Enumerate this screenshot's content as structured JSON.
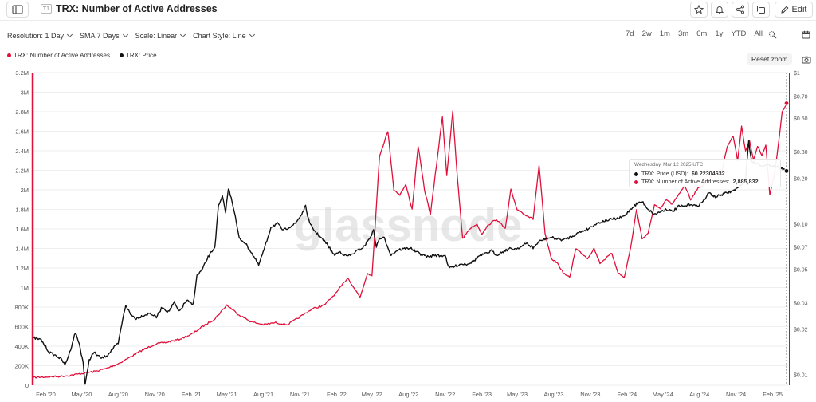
{
  "header": {
    "badge": "T1",
    "title": "TRX: Number of Active Addresses",
    "edit_label": "Edit"
  },
  "controls": {
    "resolution": "Resolution: 1 Day",
    "sma": "SMA 7 Days",
    "scale": "Scale: Linear",
    "style": "Chart Style: Line"
  },
  "ranges": [
    "7d",
    "2w",
    "1m",
    "3m",
    "6m",
    "1y",
    "YTD",
    "All"
  ],
  "legend": {
    "addresses": "TRX: Number of Active Addresses",
    "price": "TRX: Price"
  },
  "reset_zoom": "Reset zoom",
  "watermark": "glassnode",
  "tooltip": {
    "date": "Wednesday, Mar 12 2025 UTC",
    "price_label": "TRX: Price (USD):",
    "price_value": "$0.22304632",
    "addr_label": "TRX: Number of Active Addresses:",
    "addr_value": "2,885,832"
  },
  "colors": {
    "addresses": "#e0103a",
    "price": "#111111",
    "grid": "#eeeeee"
  },
  "chart_data": {
    "type": "line",
    "x_ticks": [
      "Feb '20",
      "May '20",
      "Aug '20",
      "Nov '20",
      "Feb '21",
      "May '21",
      "Aug '21",
      "Nov '21",
      "Feb '22",
      "May '22",
      "Aug '22",
      "Nov '22",
      "Feb '23",
      "May '23",
      "Aug '23",
      "Nov '23",
      "Feb '24",
      "May '24",
      "Aug '24",
      "Nov '24",
      "Feb '25"
    ],
    "y_left": {
      "ticks": [
        "0",
        "200K",
        "400K",
        "600K",
        "800K",
        "1M",
        "1.2M",
        "1.4M",
        "1.6M",
        "1.8M",
        "2M",
        "2.2M",
        "2.4M",
        "2.6M",
        "2.8M",
        "3M",
        "3.2M"
      ],
      "range": [
        0,
        3200000
      ]
    },
    "y_right": {
      "scale": "log",
      "ticks": [
        "$0.01",
        "$0.02",
        "$0.03",
        "$0.05",
        "$0.07",
        "$0.10",
        "$0.20",
        "$0.30",
        "$0.50",
        "$0.70",
        "$1"
      ],
      "values": [
        0.01,
        0.02,
        0.03,
        0.05,
        0.07,
        0.1,
        0.2,
        0.3,
        0.5,
        0.7,
        1.0
      ],
      "range": [
        0.0085,
        1.0
      ]
    },
    "series": [
      {
        "name": "TRX: Number of Active Addresses",
        "axis": "left",
        "points": [
          [
            "2020-01-01",
            80000
          ],
          [
            "2020-02-01",
            85000
          ],
          [
            "2020-03-01",
            90000
          ],
          [
            "2020-04-01",
            100000
          ],
          [
            "2020-05-01",
            120000
          ],
          [
            "2020-06-01",
            140000
          ],
          [
            "2020-07-01",
            170000
          ],
          [
            "2020-08-01",
            220000
          ],
          [
            "2020-09-01",
            290000
          ],
          [
            "2020-10-01",
            360000
          ],
          [
            "2020-11-01",
            420000
          ],
          [
            "2020-12-01",
            440000
          ],
          [
            "2021-01-01",
            470000
          ],
          [
            "2021-02-01",
            520000
          ],
          [
            "2021-03-01",
            600000
          ],
          [
            "2021-04-01",
            680000
          ],
          [
            "2021-05-01",
            820000
          ],
          [
            "2021-06-01",
            720000
          ],
          [
            "2021-07-01",
            650000
          ],
          [
            "2021-08-01",
            620000
          ],
          [
            "2021-09-01",
            640000
          ],
          [
            "2021-10-01",
            620000
          ],
          [
            "2021-11-01",
            700000
          ],
          [
            "2021-12-01",
            780000
          ],
          [
            "2022-01-01",
            820000
          ],
          [
            "2022-02-01",
            950000
          ],
          [
            "2022-03-01",
            1100000
          ],
          [
            "2022-04-01",
            900000
          ],
          [
            "2022-04-20",
            1150000
          ],
          [
            "2022-05-01",
            1120000
          ],
          [
            "2022-05-20",
            2350000
          ],
          [
            "2022-06-10",
            2600000
          ],
          [
            "2022-06-25",
            2000000
          ],
          [
            "2022-07-10",
            1950000
          ],
          [
            "2022-07-25",
            2050000
          ],
          [
            "2022-08-10",
            1800000
          ],
          [
            "2022-08-25",
            2450000
          ],
          [
            "2022-09-10",
            2000000
          ],
          [
            "2022-09-25",
            1750000
          ],
          [
            "2022-10-10",
            2250000
          ],
          [
            "2022-10-25",
            2750000
          ],
          [
            "2022-11-05",
            2150000
          ],
          [
            "2022-11-20",
            2800000
          ],
          [
            "2022-12-01",
            2150000
          ],
          [
            "2022-12-15",
            1500000
          ],
          [
            "2023-01-01",
            1600000
          ],
          [
            "2023-01-20",
            1650000
          ],
          [
            "2023-02-01",
            1550000
          ],
          [
            "2023-02-20",
            1650000
          ],
          [
            "2023-03-10",
            1700000
          ],
          [
            "2023-04-01",
            1600000
          ],
          [
            "2023-04-15",
            2000000
          ],
          [
            "2023-05-01",
            1800000
          ],
          [
            "2023-05-20",
            1750000
          ],
          [
            "2023-06-10",
            1700000
          ],
          [
            "2023-06-25",
            2250000
          ],
          [
            "2023-07-10",
            1550000
          ],
          [
            "2023-07-25",
            1300000
          ],
          [
            "2023-08-10",
            1250000
          ],
          [
            "2023-08-25",
            1150000
          ],
          [
            "2023-09-10",
            1100000
          ],
          [
            "2023-09-25",
            1400000
          ],
          [
            "2023-10-10",
            1350000
          ],
          [
            "2023-10-25",
            1300000
          ],
          [
            "2023-11-10",
            1400000
          ],
          [
            "2023-11-25",
            1250000
          ],
          [
            "2023-12-10",
            1300000
          ],
          [
            "2023-12-25",
            1350000
          ],
          [
            "2024-01-10",
            1150000
          ],
          [
            "2024-01-25",
            1100000
          ],
          [
            "2024-02-10",
            1400000
          ],
          [
            "2024-02-25",
            1800000
          ],
          [
            "2024-03-10",
            1500000
          ],
          [
            "2024-03-25",
            1550000
          ],
          [
            "2024-04-10",
            1850000
          ],
          [
            "2024-04-25",
            1800000
          ],
          [
            "2024-05-10",
            1900000
          ],
          [
            "2024-05-25",
            1850000
          ],
          [
            "2024-06-10",
            1950000
          ],
          [
            "2024-06-25",
            2050000
          ],
          [
            "2024-07-10",
            1900000
          ],
          [
            "2024-07-25",
            2000000
          ],
          [
            "2024-08-10",
            2050000
          ],
          [
            "2024-08-25",
            2100000
          ],
          [
            "2024-09-10",
            2200000
          ],
          [
            "2024-09-25",
            2150000
          ],
          [
            "2024-10-10",
            2450000
          ],
          [
            "2024-10-25",
            2550000
          ],
          [
            "2024-11-05",
            2300000
          ],
          [
            "2024-11-15",
            2650000
          ],
          [
            "2024-11-25",
            2400000
          ],
          [
            "2024-12-05",
            2500000
          ],
          [
            "2024-12-15",
            2300000
          ],
          [
            "2024-12-25",
            2450000
          ],
          [
            "2025-01-05",
            2350000
          ],
          [
            "2025-01-15",
            2450000
          ],
          [
            "2025-01-25",
            1950000
          ],
          [
            "2025-02-05",
            2150000
          ],
          [
            "2025-02-15",
            2450000
          ],
          [
            "2025-02-25",
            2800000
          ],
          [
            "2025-03-05",
            2850000
          ],
          [
            "2025-03-12",
            2885832
          ]
        ]
      },
      {
        "name": "TRX: Price",
        "axis": "right",
        "points": [
          [
            "2020-01-01",
            0.0175
          ],
          [
            "2020-01-20",
            0.017
          ],
          [
            "2020-02-10",
            0.014
          ],
          [
            "2020-03-01",
            0.0132
          ],
          [
            "2020-03-13",
            0.0125
          ],
          [
            "2020-03-20",
            0.0115
          ],
          [
            "2020-04-01",
            0.014
          ],
          [
            "2020-04-15",
            0.019
          ],
          [
            "2020-04-25",
            0.016
          ],
          [
            "2020-05-05",
            0.012
          ],
          [
            "2020-05-10",
            0.0085
          ],
          [
            "2020-05-20",
            0.0125
          ],
          [
            "2020-06-01",
            0.014
          ],
          [
            "2020-06-20",
            0.0128
          ],
          [
            "2020-07-05",
            0.0135
          ],
          [
            "2020-07-20",
            0.015
          ],
          [
            "2020-08-01",
            0.016
          ],
          [
            "2020-08-10",
            0.0215
          ],
          [
            "2020-08-20",
            0.029
          ],
          [
            "2020-09-01",
            0.025
          ],
          [
            "2020-09-15",
            0.0235
          ],
          [
            "2020-10-01",
            0.0245
          ],
          [
            "2020-10-20",
            0.0255
          ],
          [
            "2020-11-05",
            0.024
          ],
          [
            "2020-11-20",
            0.028
          ],
          [
            "2020-12-05",
            0.026
          ],
          [
            "2020-12-20",
            0.03
          ],
          [
            "2021-01-01",
            0.026
          ],
          [
            "2021-01-20",
            0.031
          ],
          [
            "2021-02-05",
            0.029
          ],
          [
            "2021-02-15",
            0.045
          ],
          [
            "2021-03-01",
            0.05
          ],
          [
            "2021-03-15",
            0.06
          ],
          [
            "2021-04-01",
            0.07
          ],
          [
            "2021-04-10",
            0.13
          ],
          [
            "2021-04-20",
            0.15
          ],
          [
            "2021-04-28",
            0.12
          ],
          [
            "2021-05-05",
            0.17
          ],
          [
            "2021-05-12",
            0.15
          ],
          [
            "2021-05-20",
            0.12
          ],
          [
            "2021-06-01",
            0.08
          ],
          [
            "2021-06-15",
            0.075
          ],
          [
            "2021-07-01",
            0.065
          ],
          [
            "2021-07-20",
            0.053
          ],
          [
            "2021-08-05",
            0.07
          ],
          [
            "2021-08-20",
            0.095
          ],
          [
            "2021-09-05",
            0.1
          ],
          [
            "2021-09-20",
            0.09
          ],
          [
            "2021-10-05",
            0.095
          ],
          [
            "2021-10-20",
            0.1
          ],
          [
            "2021-11-05",
            0.115
          ],
          [
            "2021-11-15",
            0.13
          ],
          [
            "2021-11-25",
            0.1
          ],
          [
            "2021-12-10",
            0.088
          ],
          [
            "2021-12-25",
            0.08
          ],
          [
            "2022-01-10",
            0.072
          ],
          [
            "2022-01-25",
            0.062
          ],
          [
            "2022-02-10",
            0.065
          ],
          [
            "2022-02-25",
            0.061
          ],
          [
            "2022-03-10",
            0.062
          ],
          [
            "2022-03-25",
            0.066
          ],
          [
            "2022-04-10",
            0.07
          ],
          [
            "2022-04-25",
            0.08
          ],
          [
            "2022-05-05",
            0.09
          ],
          [
            "2022-05-12",
            0.07
          ],
          [
            "2022-05-20",
            0.08
          ],
          [
            "2022-06-01",
            0.08
          ],
          [
            "2022-06-18",
            0.062
          ],
          [
            "2022-07-05",
            0.067
          ],
          [
            "2022-07-20",
            0.068
          ],
          [
            "2022-08-05",
            0.069
          ],
          [
            "2022-08-20",
            0.065
          ],
          [
            "2022-09-05",
            0.062
          ],
          [
            "2022-09-20",
            0.06
          ],
          [
            "2022-10-05",
            0.062
          ],
          [
            "2022-10-20",
            0.061
          ],
          [
            "2022-11-01",
            0.062
          ],
          [
            "2022-11-10",
            0.051
          ],
          [
            "2022-11-25",
            0.052
          ],
          [
            "2022-12-10",
            0.054
          ],
          [
            "2022-12-25",
            0.054
          ],
          [
            "2023-01-10",
            0.056
          ],
          [
            "2023-01-25",
            0.061
          ],
          [
            "2023-02-10",
            0.063
          ],
          [
            "2023-02-25",
            0.066
          ],
          [
            "2023-03-10",
            0.062
          ],
          [
            "2023-03-25",
            0.065
          ],
          [
            "2023-04-10",
            0.068
          ],
          [
            "2023-04-25",
            0.068
          ],
          [
            "2023-05-10",
            0.07
          ],
          [
            "2023-05-25",
            0.074
          ],
          [
            "2023-06-10",
            0.069
          ],
          [
            "2023-06-25",
            0.076
          ],
          [
            "2023-07-10",
            0.079
          ],
          [
            "2023-07-25",
            0.081
          ],
          [
            "2023-08-10",
            0.079
          ],
          [
            "2023-08-25",
            0.078
          ],
          [
            "2023-09-10",
            0.081
          ],
          [
            "2023-09-25",
            0.085
          ],
          [
            "2023-10-10",
            0.089
          ],
          [
            "2023-10-25",
            0.092
          ],
          [
            "2023-11-10",
            0.098
          ],
          [
            "2023-11-25",
            0.102
          ],
          [
            "2023-12-10",
            0.105
          ],
          [
            "2023-12-25",
            0.107
          ],
          [
            "2024-01-10",
            0.108
          ],
          [
            "2024-01-25",
            0.112
          ],
          [
            "2024-02-10",
            0.125
          ],
          [
            "2024-02-25",
            0.135
          ],
          [
            "2024-03-10",
            0.14
          ],
          [
            "2024-03-25",
            0.125
          ],
          [
            "2024-04-10",
            0.115
          ],
          [
            "2024-04-25",
            0.12
          ],
          [
            "2024-05-10",
            0.125
          ],
          [
            "2024-05-25",
            0.12
          ],
          [
            "2024-06-10",
            0.13
          ],
          [
            "2024-06-25",
            0.13
          ],
          [
            "2024-07-10",
            0.135
          ],
          [
            "2024-07-25",
            0.13
          ],
          [
            "2024-08-10",
            0.14
          ],
          [
            "2024-08-25",
            0.16
          ],
          [
            "2024-09-10",
            0.15
          ],
          [
            "2024-09-25",
            0.155
          ],
          [
            "2024-10-10",
            0.16
          ],
          [
            "2024-10-25",
            0.165
          ],
          [
            "2024-11-10",
            0.175
          ],
          [
            "2024-11-25",
            0.2
          ],
          [
            "2024-12-03",
            0.35
          ],
          [
            "2024-12-10",
            0.26
          ],
          [
            "2024-12-25",
            0.25
          ],
          [
            "2025-01-10",
            0.24
          ],
          [
            "2025-01-25",
            0.245
          ],
          [
            "2025-02-05",
            0.24
          ],
          [
            "2025-02-20",
            0.235
          ],
          [
            "2025-03-01",
            0.23
          ],
          [
            "2025-03-12",
            0.223
          ]
        ]
      }
    ],
    "hover_date": "2025-03-12"
  }
}
